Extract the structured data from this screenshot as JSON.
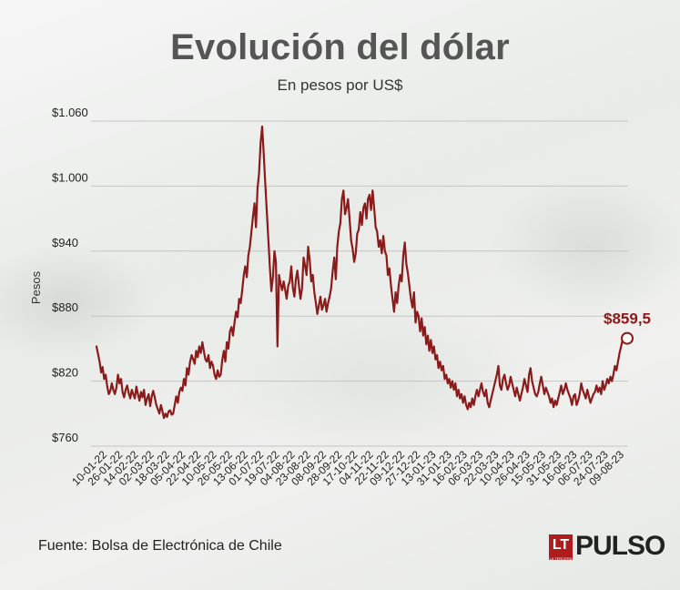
{
  "header": {
    "title": "Evolución del dólar",
    "subtitle": "En pesos por US$"
  },
  "footer": {
    "source": "Fuente: Bolsa de Electrónica de Chile",
    "logo_small": "LT",
    "logo_small_caption": "LA TERCERA",
    "logo_word": "PULSO"
  },
  "chart_data": {
    "type": "line",
    "title": "Evolución del dólar",
    "subtitle": "En pesos por US$",
    "ylabel": "Pesos",
    "xlabel": "",
    "ylim": [
      760,
      1060
    ],
    "ytick_labels": [
      "$760",
      "$820",
      "$880",
      "$940",
      "$1.000",
      "$1.060"
    ],
    "yticks": [
      760,
      820,
      880,
      940,
      1000,
      1060
    ],
    "xtick_labels": [
      "10-01-22",
      "26-01-22",
      "14-02-22",
      "02-03-22",
      "18-03-22",
      "05-04-22",
      "22-04-22",
      "10-05-22",
      "26-05-22",
      "13-06-22",
      "01-07-22",
      "19-07-22",
      "04-08-22",
      "23-08-22",
      "08-09-22",
      "28-09-22",
      "17-10-22",
      "04-11-22",
      "22-11-22",
      "09-12-22",
      "27-12-22",
      "13-01-23",
      "31-01-23",
      "16-02-23",
      "06-03-23",
      "22-03-23",
      "10-04-23",
      "26-04-23",
      "15-05-23",
      "31-05-23",
      "16-06-23",
      "06-07-23",
      "24-07-23",
      "09-08-23"
    ],
    "grid": true,
    "line_color": "#8b1a1a",
    "end_label": "$859,5",
    "series": [
      {
        "values": [
          852,
          845,
          838,
          828,
          833,
          822,
          826,
          815,
          808,
          811,
          818,
          812,
          808,
          814,
          826,
          818,
          822,
          810,
          805,
          812,
          816,
          809,
          804,
          812,
          808,
          804,
          815,
          808,
          802,
          810,
          805,
          812,
          798,
          804,
          808,
          797,
          806,
          811,
          805,
          798,
          794,
          790,
          798,
          792,
          786,
          790,
          787,
          792,
          793,
          789,
          790,
          798,
          806,
          800,
          810,
          814,
          811,
          822,
          816,
          832,
          826,
          838,
          844,
          840,
          836,
          848,
          842,
          852,
          846,
          856,
          848,
          840,
          838,
          844,
          832,
          838,
          834,
          826,
          822,
          830,
          824,
          826,
          840,
          848,
          838,
          856,
          850,
          866,
          870,
          862,
          874,
          884,
          879,
          896,
          892,
          904,
          918,
          926,
          916,
          936,
          944,
          958,
          972,
          984,
          962,
          998,
          1012,
          1040,
          1055,
          1030,
          1004,
          978,
          952,
          926,
          903,
          916,
          940,
          930,
          852,
          918,
          910,
          904,
          912,
          904,
          896,
          908,
          912,
          926,
          906,
          898,
          914,
          922,
          908,
          896,
          906,
          934,
          926,
          918,
          944,
          932,
          912,
          918,
          902,
          892,
          882,
          890,
          898,
          886,
          890,
          896,
          884,
          892,
          898,
          906,
          922,
          934,
          914,
          944,
          958,
          966,
          988,
          996,
          974,
          980,
          988,
          970,
          950,
          942,
          930,
          938,
          956,
          960,
          976,
          964,
          980,
          984,
          970,
          988,
          992,
          978,
          996,
          980,
          962,
          958,
          944,
          950,
          938,
          954,
          940,
          936,
          918,
          924,
          908,
          896,
          884,
          902,
          892,
          908,
          918,
          912,
          936,
          948,
          928,
          920,
          908,
          896,
          888,
          902,
          874,
          884,
          880,
          866,
          878,
          862,
          870,
          854,
          862,
          848,
          858,
          846,
          852,
          840,
          844,
          832,
          838,
          830,
          834,
          822,
          826,
          818,
          822,
          814,
          820,
          812,
          818,
          806,
          812,
          804,
          808,
          800,
          806,
          798,
          794,
          800,
          796,
          804,
          798,
          806,
          812,
          806,
          812,
          818,
          810,
          806,
          812,
          800,
          796,
          802,
          808,
          814,
          820,
          826,
          834,
          816,
          812,
          822,
          826,
          818,
          812,
          816,
          824,
          818,
          812,
          806,
          814,
          808,
          802,
          808,
          814,
          822,
          816,
          810,
          826,
          832,
          820,
          814,
          808,
          806,
          810,
          818,
          824,
          816,
          808,
          814,
          810,
          806,
          800,
          804,
          796,
          802,
          798,
          804,
          810,
          816,
          808,
          812,
          818,
          812,
          808,
          804,
          798,
          806,
          808,
          798,
          802,
          808,
          818,
          812,
          808,
          804,
          812,
          806,
          800,
          804,
          808,
          810,
          816,
          810,
          814,
          808,
          820,
          812,
          816,
          822,
          818,
          824,
          820,
          826,
          834,
          830,
          838,
          846,
          852,
          858,
          856,
          860,
          859.5
        ]
      }
    ]
  }
}
